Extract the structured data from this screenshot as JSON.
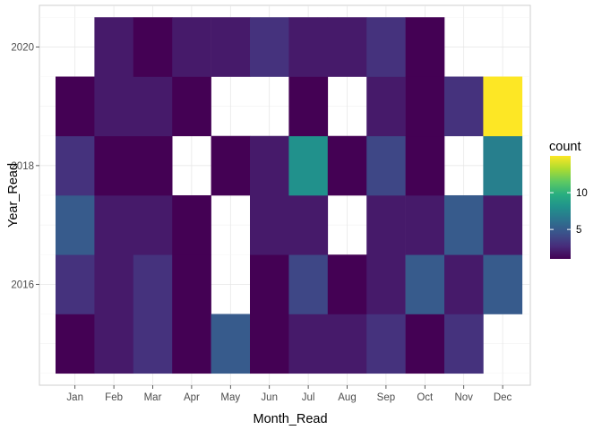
{
  "chart_data": {
    "type": "heatmap",
    "title": "",
    "xlabel": "Month_Read",
    "ylabel": "Year_Read",
    "x_categories": [
      "Jan",
      "Feb",
      "Mar",
      "Apr",
      "May",
      "Jun",
      "Jul",
      "Aug",
      "Sep",
      "Oct",
      "Nov",
      "Dec"
    ],
    "y_tick_labels": [
      "2016",
      "2018",
      "2020"
    ],
    "y_rows": [
      2015,
      2016,
      2017,
      2018,
      2019,
      2020
    ],
    "ylim": [
      2014.3,
      2020.7
    ],
    "cells": [
      {
        "x": "Jan",
        "y": 2015,
        "value": 1
      },
      {
        "x": "Feb",
        "y": 2015,
        "value": 2
      },
      {
        "x": "Mar",
        "y": 2015,
        "value": 3
      },
      {
        "x": "Apr",
        "y": 2015,
        "value": 1
      },
      {
        "x": "May",
        "y": 2015,
        "value": 5
      },
      {
        "x": "Jun",
        "y": 2015,
        "value": 1
      },
      {
        "x": "Jul",
        "y": 2015,
        "value": 2
      },
      {
        "x": "Aug",
        "y": 2015,
        "value": 2
      },
      {
        "x": "Sep",
        "y": 2015,
        "value": 3
      },
      {
        "x": "Oct",
        "y": 2015,
        "value": 1
      },
      {
        "x": "Nov",
        "y": 2015,
        "value": 3
      },
      {
        "x": "Jan",
        "y": 2016,
        "value": 3
      },
      {
        "x": "Feb",
        "y": 2016,
        "value": 2
      },
      {
        "x": "Mar",
        "y": 2016,
        "value": 3
      },
      {
        "x": "Apr",
        "y": 2016,
        "value": 1
      },
      {
        "x": "Jun",
        "y": 2016,
        "value": 1
      },
      {
        "x": "Jul",
        "y": 2016,
        "value": 4
      },
      {
        "x": "Aug",
        "y": 2016,
        "value": 1
      },
      {
        "x": "Sep",
        "y": 2016,
        "value": 2
      },
      {
        "x": "Oct",
        "y": 2016,
        "value": 5
      },
      {
        "x": "Nov",
        "y": 2016,
        "value": 2
      },
      {
        "x": "Dec",
        "y": 2016,
        "value": 5
      },
      {
        "x": "Jan",
        "y": 2017,
        "value": 5
      },
      {
        "x": "Feb",
        "y": 2017,
        "value": 2
      },
      {
        "x": "Mar",
        "y": 2017,
        "value": 2
      },
      {
        "x": "Apr",
        "y": 2017,
        "value": 1
      },
      {
        "x": "Jun",
        "y": 2017,
        "value": 2
      },
      {
        "x": "Jul",
        "y": 2017,
        "value": 2
      },
      {
        "x": "Sep",
        "y": 2017,
        "value": 2
      },
      {
        "x": "Oct",
        "y": 2017,
        "value": 2
      },
      {
        "x": "Nov",
        "y": 2017,
        "value": 5
      },
      {
        "x": "Dec",
        "y": 2017,
        "value": 2
      },
      {
        "x": "Jan",
        "y": 2018,
        "value": 3
      },
      {
        "x": "Feb",
        "y": 2018,
        "value": 1
      },
      {
        "x": "Mar",
        "y": 2018,
        "value": 1
      },
      {
        "x": "May",
        "y": 2018,
        "value": 1
      },
      {
        "x": "Jun",
        "y": 2018,
        "value": 2
      },
      {
        "x": "Jul",
        "y": 2018,
        "value": 8
      },
      {
        "x": "Aug",
        "y": 2018,
        "value": 1
      },
      {
        "x": "Sep",
        "y": 2018,
        "value": 4
      },
      {
        "x": "Oct",
        "y": 2018,
        "value": 1
      },
      {
        "x": "Dec",
        "y": 2018,
        "value": 7
      },
      {
        "x": "Jan",
        "y": 2019,
        "value": 1
      },
      {
        "x": "Feb",
        "y": 2019,
        "value": 2
      },
      {
        "x": "Mar",
        "y": 2019,
        "value": 2
      },
      {
        "x": "Apr",
        "y": 2019,
        "value": 1
      },
      {
        "x": "Jul",
        "y": 2019,
        "value": 1
      },
      {
        "x": "Sep",
        "y": 2019,
        "value": 2
      },
      {
        "x": "Oct",
        "y": 2019,
        "value": 1
      },
      {
        "x": "Nov",
        "y": 2019,
        "value": 3
      },
      {
        "x": "Dec",
        "y": 2019,
        "value": 15
      },
      {
        "x": "Feb",
        "y": 2020,
        "value": 2
      },
      {
        "x": "Mar",
        "y": 2020,
        "value": 1
      },
      {
        "x": "Apr",
        "y": 2020,
        "value": 2
      },
      {
        "x": "May",
        "y": 2020,
        "value": 2
      },
      {
        "x": "Jun",
        "y": 2020,
        "value": 3
      },
      {
        "x": "Jul",
        "y": 2020,
        "value": 2
      },
      {
        "x": "Aug",
        "y": 2020,
        "value": 2
      },
      {
        "x": "Sep",
        "y": 2020,
        "value": 3
      },
      {
        "x": "Oct",
        "y": 2020,
        "value": 1
      }
    ],
    "legend": {
      "title": "count",
      "position": "right",
      "ticks": [
        "5",
        "10"
      ],
      "tick_values": [
        5,
        10
      ],
      "range": [
        1,
        15
      ]
    },
    "grid": true
  }
}
